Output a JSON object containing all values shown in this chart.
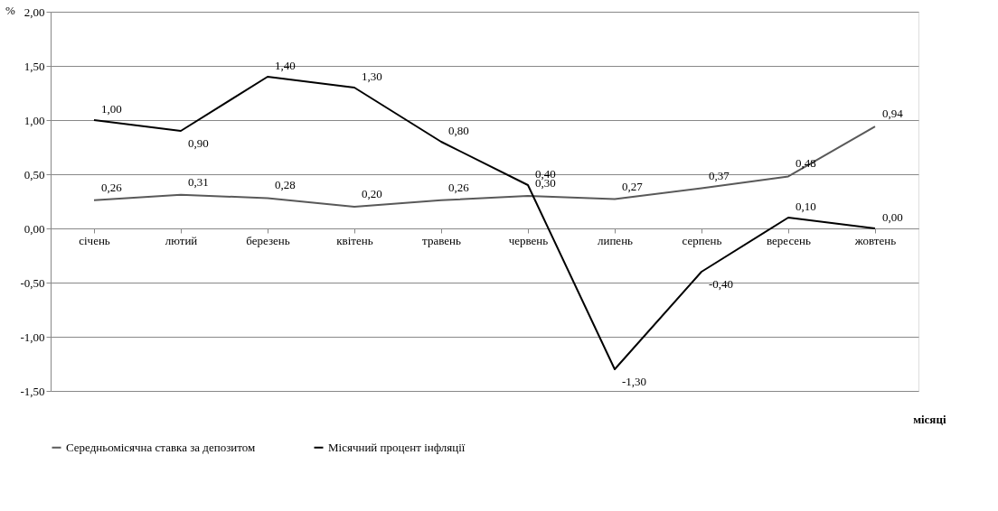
{
  "chart_data": {
    "type": "line",
    "xlabel": "місяці",
    "ylabel": "%",
    "categories": [
      "січень",
      "лютий",
      "березень",
      "квітень",
      "травень",
      "червень",
      "липень",
      "серпень",
      "вересень",
      "жовтень"
    ],
    "series": [
      {
        "name": "Середньомісячна ставка за депозитом",
        "color": "#595959",
        "values": [
          0.26,
          0.31,
          0.28,
          0.2,
          0.26,
          0.3,
          0.27,
          0.37,
          0.48,
          0.94
        ],
        "value_labels": [
          "0,26",
          "0,31",
          "0,28",
          "0,20",
          "0,26",
          "0,30",
          "0,27",
          "0,37",
          "0,48",
          "0,94"
        ]
      },
      {
        "name": "Місячний процент інфляції",
        "color": "#000000",
        "values": [
          1.0,
          0.9,
          1.4,
          1.3,
          0.8,
          0.4,
          -1.3,
          -0.4,
          0.1,
          0.0
        ],
        "value_labels": [
          "1,00",
          "0,90",
          "1,40",
          "1,30",
          "0,80",
          "0,40",
          "-1,30",
          "-0,40",
          "0,10",
          "0,00"
        ]
      }
    ],
    "ylim": [
      -1.5,
      2.0
    ],
    "yticks": [
      {
        "value": -1.5,
        "label": "-1,50"
      },
      {
        "value": -1.0,
        "label": "-1,00"
      },
      {
        "value": -0.5,
        "label": "-0,50"
      },
      {
        "value": 0.0,
        "label": "0,00"
      },
      {
        "value": 0.5,
        "label": "0,50"
      },
      {
        "value": 1.0,
        "label": "1,00"
      },
      {
        "value": 1.5,
        "label": "1,50"
      },
      {
        "value": 2.0,
        "label": "2,00"
      }
    ],
    "grid": "y",
    "legend": "bottom",
    "marker": "none",
    "line_style": "solid"
  }
}
